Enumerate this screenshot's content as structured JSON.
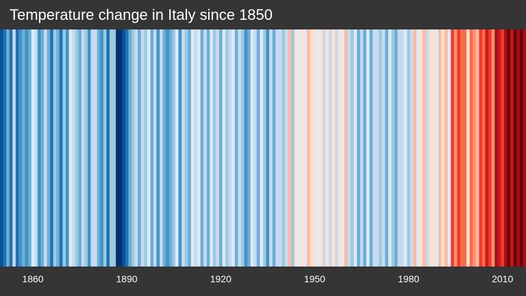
{
  "chart_data": {
    "type": "heatmap",
    "title": "Temperature change in Italy since 1850",
    "xlim": [
      1850,
      2020
    ],
    "xticks": [
      "1860",
      "1890",
      "1920",
      "1950",
      "1980",
      "2010"
    ],
    "values": [
      -1.7,
      -1.5,
      -0.9,
      -1.4,
      -0.4,
      -1.3,
      -1.2,
      -0.8,
      -1.1,
      -0.9,
      -0.2,
      -0.5,
      -1.1,
      -0.9,
      -0.4,
      -0.8,
      -1.3,
      -0.6,
      -1.0,
      -1.4,
      -0.6,
      -1.2,
      -0.2,
      -0.3,
      -0.6,
      -0.9,
      -0.4,
      -0.7,
      -1.2,
      -0.5,
      -0.3,
      -0.8,
      -1.1,
      -0.7,
      -1.4,
      -0.6,
      -0.7,
      -1.8,
      -2.0,
      -1.6,
      -1.3,
      -0.8,
      -0.7,
      -0.4,
      -1.0,
      -0.3,
      -0.6,
      -0.2,
      -0.9,
      -0.5,
      -1.1,
      -0.3,
      -0.8,
      -1.2,
      -1.0,
      -0.6,
      -0.2,
      -1.1,
      -0.4,
      -0.7,
      -0.9,
      -0.2,
      -0.5,
      -0.1,
      -0.8,
      -0.4,
      -1.0,
      -0.1,
      -0.6,
      -0.3,
      -0.9,
      -0.2,
      -0.7,
      -0.4,
      -0.1,
      -0.8,
      -0.3,
      -0.6,
      -1.2,
      -0.9,
      -0.2,
      -0.5,
      -1.0,
      -0.1,
      -0.7,
      -1.1,
      -0.4,
      -0.9,
      -0.3,
      -0.5,
      -0.7,
      -0.3,
      0.4,
      -0.6,
      0.1,
      -0.2,
      0.2,
      -0.1,
      0.3,
      0.15,
      0.1,
      -0.1,
      0.2,
      -0.3,
      0.25,
      -0.5,
      0.1,
      -0.4,
      0.0,
      -0.2,
      0.4,
      -0.3,
      -0.6,
      -0.1,
      -0.8,
      -0.4,
      -0.9,
      -0.2,
      -1.0,
      -0.5,
      -0.3,
      -0.7,
      -0.4,
      -0.8,
      -0.2,
      -0.6,
      -0.9,
      -0.3,
      -0.5,
      -0.1,
      -0.6,
      -0.3,
      0.3,
      -0.2,
      0.15,
      0.4,
      -0.3,
      0.2,
      0.1,
      -0.1,
      0.3,
      0.15,
      0.5,
      -0.2,
      1.2,
      0.8,
      1.3,
      0.9,
      1.1,
      0.2,
      1.0,
      0.7,
      0.3,
      1.2,
      0.9,
      1.5,
      1.3,
      0.8,
      1.8,
      1.6,
      1.3,
      1.9,
      2.1,
      1.7,
      2.3,
      1.8,
      2.4,
      2.0
    ]
  }
}
